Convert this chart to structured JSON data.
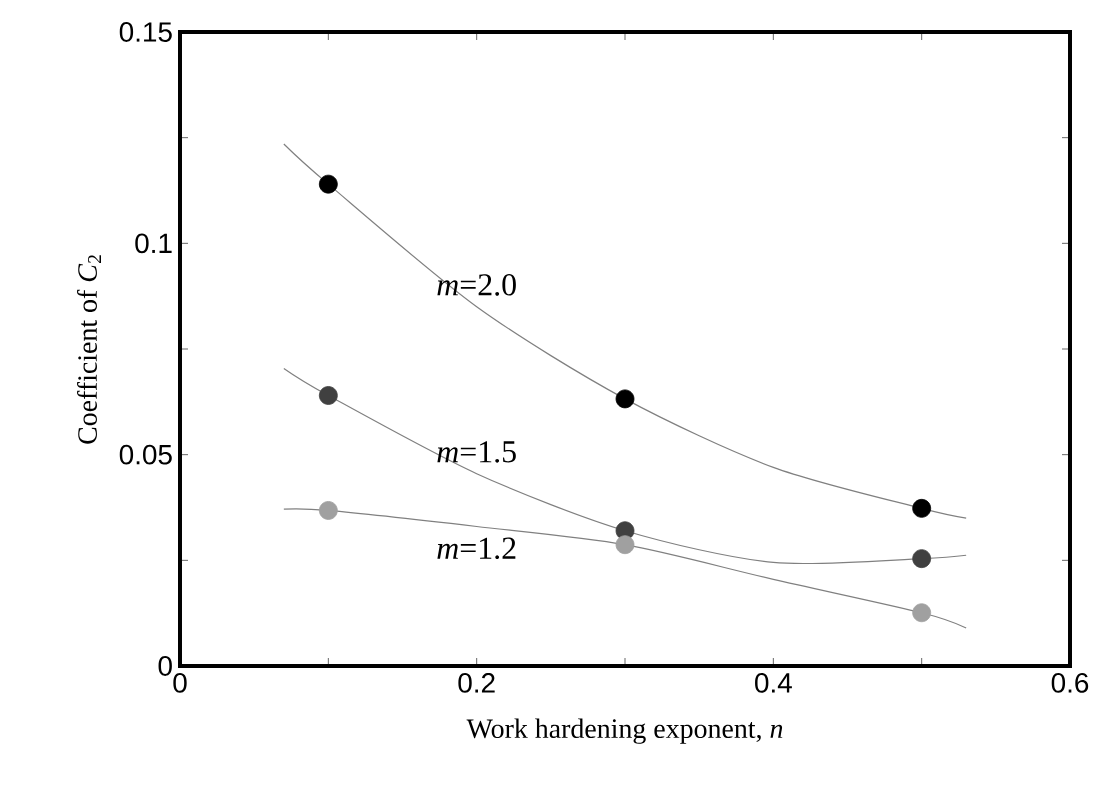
{
  "chart_data": {
    "type": "scatter",
    "xlabel": "Work hardening exponent, *n*",
    "ylabel": "Coefficient of *C*$_{2}$",
    "xlim": [
      0,
      0.6
    ],
    "ylim": [
      0,
      0.15
    ],
    "xticks": [
      0,
      {
        "value": 0.1,
        "label": null
      },
      0.2,
      {
        "value": 0.3,
        "label": null
      },
      0.4,
      {
        "value": 0.5,
        "label": null
      },
      0.6
    ],
    "yticks": [
      0,
      {
        "value": 0.025,
        "label": null
      },
      0.05,
      {
        "value": 0.075,
        "label": null
      },
      0.1,
      {
        "value": 0.125,
        "label": null
      },
      0.15
    ],
    "grid": false,
    "series": [
      {
        "name": "*m*=2.0",
        "type": "line",
        "marker": "none",
        "color": "#808080",
        "x": [
          0.07,
          0.1,
          0.2,
          0.3,
          0.4,
          0.5,
          0.53
        ],
        "values": [
          0.1235,
          0.114,
          0.085,
          0.0632,
          0.047,
          0.0373,
          0.035
        ]
      },
      {
        "name": "*m*=1.5",
        "type": "line",
        "marker": "none",
        "color": "#808080",
        "x": [
          0.07,
          0.1,
          0.2,
          0.3,
          0.4,
          0.5,
          0.53
        ],
        "values": [
          0.0704,
          0.064,
          0.0455,
          0.032,
          0.0245,
          0.0254,
          0.0262
        ]
      },
      {
        "name": "*m*=1.2",
        "type": "line",
        "marker": "none",
        "color": "#808080",
        "x": [
          0.07,
          0.1,
          0.2,
          0.3,
          0.4,
          0.5,
          0.53
        ],
        "values": [
          0.0371,
          0.0368,
          0.033,
          0.0287,
          0.0205,
          0.0126,
          0.009
        ]
      },
      {
        "marker": "circle",
        "color": "#000000",
        "x": [
          0.1,
          0.3,
          0.5
        ],
        "values": [
          0.114,
          0.0632,
          0.0373
        ]
      },
      {
        "marker": "circle",
        "color": "#404040",
        "x": [
          0.1,
          0.3,
          0.5
        ],
        "values": [
          0.064,
          0.032,
          0.0254
        ]
      },
      {
        "marker": "circle",
        "color": "#a0a0a0",
        "x": [
          0.1,
          0.3,
          0.5
        ],
        "values": [
          0.0368,
          0.0287,
          0.0126
        ]
      }
    ]
  }
}
